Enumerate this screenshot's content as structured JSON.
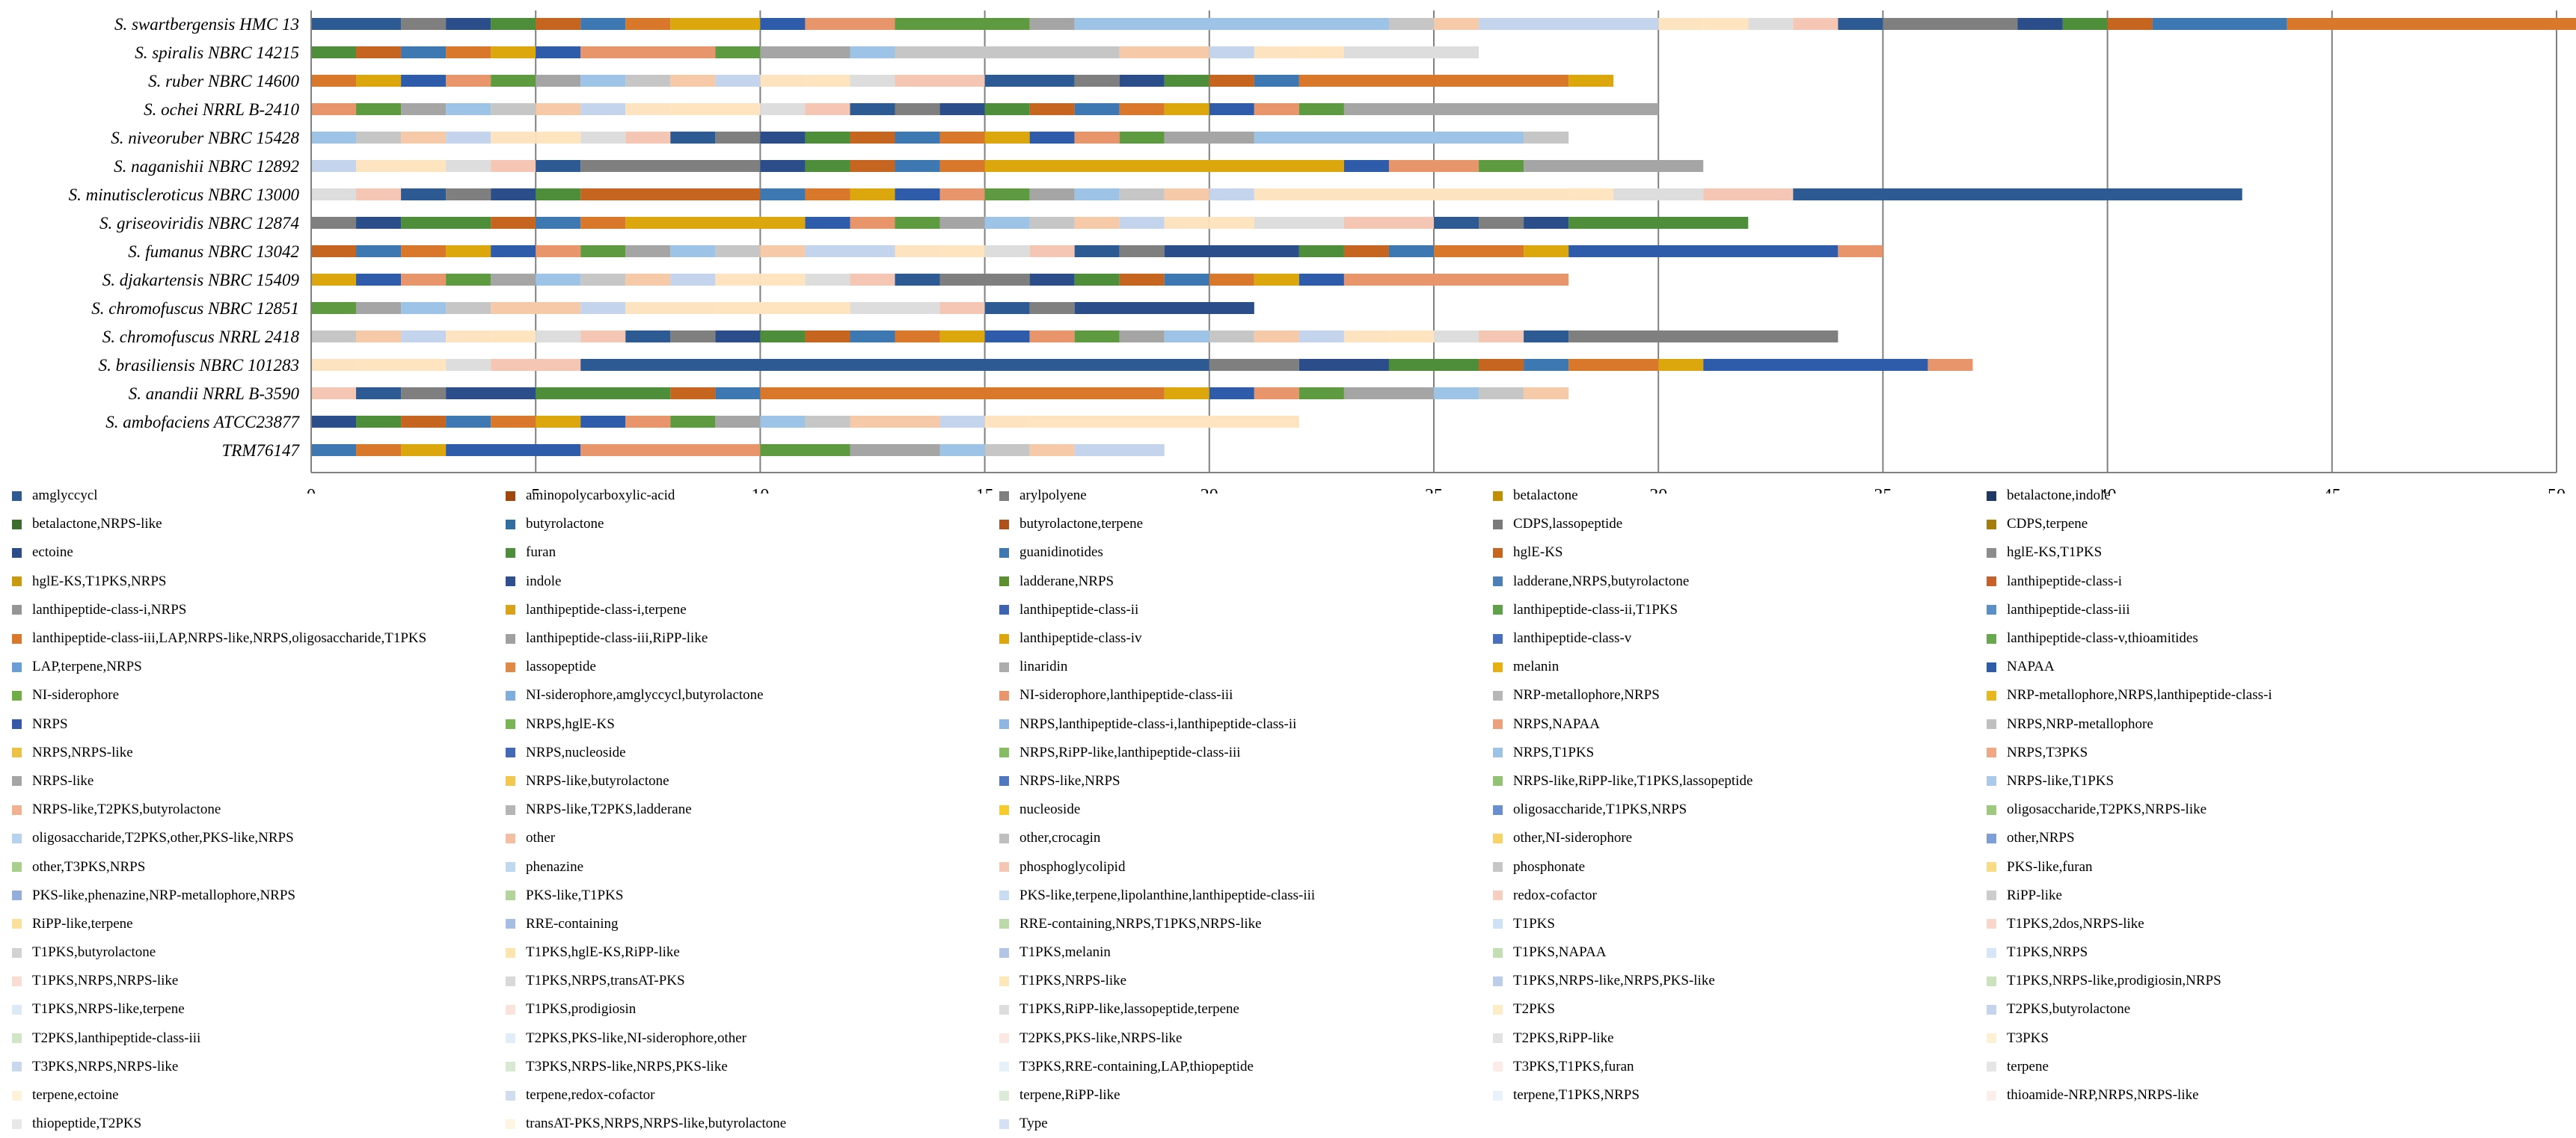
{
  "chart_data": {
    "type": "bar",
    "orientation": "horizontal",
    "stacked": true,
    "title": "",
    "xlabel": "",
    "ylabel": "",
    "xlim": [
      0,
      50
    ],
    "xticks": [
      0,
      5,
      10,
      15,
      20,
      25,
      30,
      35,
      40,
      45,
      50
    ],
    "grid": "vertical",
    "legend_position": "bottom",
    "categories": [
      "S. swartbergensis HMC 13",
      "S. spiralis NBRC 14215",
      "S. ruber NBRC 14600",
      "S. ochei NRRL B-2410",
      "S. niveoruber NBRC 15428",
      "S. naganishii NBRC 12892",
      "S. minutiscleroticus NBRC 13000",
      "S. griseoviridis NBRC 12874",
      "S. fumanus NBRC 13042",
      "S. djakartensis NBRC 15409",
      "S. chromofuscus NBRC 12851",
      "S. chromofuscus NRRL 2418",
      "S. brasiliensis NBRC 101283",
      "S. anandii NRRL B-3590",
      "S. ambofaciens ATCC23877",
      "TRM76147"
    ],
    "segment_colors": [
      "#2E5A93",
      "#7F7F7F",
      "#2B4D8A",
      "#4E8E3A",
      "#C5651F",
      "#3D78B3",
      "#D9782A",
      "#DBA70C",
      "#2F5CAA",
      "#E8956B",
      "#5E9A40",
      "#A5A5A5",
      "#9DC3E6",
      "#C6C6C6",
      "#F6C9A8",
      "#C4D4EC",
      "#FDE3C0",
      "#FFE4C0",
      "#DDDDDD",
      "#F5C6B4"
    ],
    "segment_values": [
      [
        2,
        1,
        1,
        1,
        1,
        1,
        1,
        2,
        1,
        2,
        3,
        1,
        7,
        1,
        1,
        4,
        1,
        1,
        1,
        1,
        1,
        3,
        1,
        1,
        1,
        3,
        7
      ],
      [
        1,
        1,
        1,
        1,
        1,
        1,
        3,
        1,
        2,
        1,
        5,
        2,
        1,
        1,
        1,
        3
      ],
      [
        1,
        1,
        1,
        1,
        1,
        1,
        1,
        1,
        1,
        1,
        1,
        1,
        1,
        2,
        2,
        1,
        1,
        1,
        1,
        1,
        6,
        1
      ],
      [
        1,
        1,
        1,
        1,
        1,
        1,
        1,
        1,
        2,
        1,
        1,
        1,
        1,
        1,
        1,
        1,
        1,
        1,
        1,
        1,
        1,
        1,
        7
      ],
      [
        1,
        1,
        1,
        1,
        1,
        1,
        1,
        1,
        1,
        1,
        1,
        1,
        1,
        1,
        1,
        1,
        1,
        1,
        1,
        2,
        6,
        1
      ],
      [
        1,
        1,
        1,
        1,
        1,
        1,
        4,
        1,
        1,
        1,
        1,
        1,
        8,
        1,
        2,
        1,
        4
      ],
      [
        1,
        1,
        1,
        1,
        1,
        1,
        4,
        1,
        1,
        1,
        1,
        1,
        1,
        1,
        1,
        1,
        1,
        1,
        7,
        1,
        2,
        2,
        10
      ],
      [
        1,
        1,
        2,
        1,
        1,
        1,
        4,
        1,
        1,
        1,
        1,
        1,
        1,
        1,
        1,
        1,
        1,
        2,
        2,
        1,
        1,
        1,
        4
      ],
      [
        1,
        1,
        1,
        1,
        1,
        1,
        1,
        1,
        1,
        1,
        1,
        2,
        1,
        1,
        1,
        1,
        1,
        1,
        3,
        1,
        1,
        1,
        2,
        1,
        6,
        1
      ],
      [
        1,
        1,
        1,
        1,
        1,
        1,
        1,
        1,
        1,
        1,
        1,
        1,
        1,
        1,
        2,
        1,
        1,
        1,
        1,
        1,
        1,
        1,
        5
      ],
      [
        1,
        1,
        1,
        1,
        2,
        1,
        2,
        3,
        2,
        1,
        1,
        1,
        4
      ],
      [
        1,
        1,
        1,
        1,
        1,
        1,
        1,
        1,
        1,
        1,
        1,
        1,
        1,
        1,
        1,
        1,
        1,
        1,
        1,
        1,
        1,
        1,
        1,
        1,
        1,
        1,
        1,
        1,
        6
      ],
      [
        1,
        2,
        1,
        2,
        14,
        2,
        2,
        2,
        1,
        1,
        2,
        1,
        5,
        1
      ],
      [
        1,
        1,
        1,
        2,
        3,
        1,
        1,
        9,
        1,
        1,
        1,
        1,
        2,
        1,
        1,
        1
      ],
      [
        1,
        1,
        1,
        1,
        1,
        1,
        1,
        1,
        1,
        1,
        1,
        1,
        2,
        1,
        1,
        6
      ],
      [
        1,
        1,
        1,
        3,
        4,
        2,
        2,
        1,
        1,
        1,
        2
      ]
    ],
    "legend": [
      "amglyccycl",
      "aminopolycarboxylic-acid",
      "arylpolyene",
      "betalactone",
      "betalactone,indole",
      "betalactone,NRPS-like",
      "butyrolactone",
      "butyrolactone,terpene",
      "CDPS,lassopeptide",
      "CDPS,terpene",
      "ectoine",
      "furan",
      "guanidinotides",
      "hglE-KS",
      "hglE-KS,T1PKS",
      "hglE-KS,T1PKS,NRPS",
      "indole",
      "ladderane,NRPS",
      "ladderane,NRPS,butyrolactone",
      "lanthipeptide-class-i",
      "lanthipeptide-class-i,NRPS",
      "lanthipeptide-class-i,terpene",
      "lanthipeptide-class-ii",
      "lanthipeptide-class-ii,T1PKS",
      "lanthipeptide-class-iii",
      "lanthipeptide-class-iii,LAP,NRPS-like,NRPS,oligosaccharide,T1PKS",
      "lanthipeptide-class-iii,RiPP-like",
      "lanthipeptide-class-iv",
      "lanthipeptide-class-v",
      "lanthipeptide-class-v,thioamitides",
      "LAP,terpene,NRPS",
      "lassopeptide",
      "linaridin",
      "melanin",
      "NAPAA",
      "NI-siderophore",
      "NI-siderophore,amglyccycl,butyrolactone",
      "NI-siderophore,lanthipeptide-class-iii",
      "NRP-metallophore,NRPS",
      "NRP-metallophore,NRPS,lanthipeptide-class-i",
      "NRPS",
      "NRPS,hglE-KS",
      "NRPS,lanthipeptide-class-i,lanthipeptide-class-ii",
      "NRPS,NAPAA",
      "NRPS,NRP-metallophore",
      "NRPS,NRPS-like",
      "NRPS,nucleoside",
      "NRPS,RiPP-like,lanthipeptide-class-iii",
      "NRPS,T1PKS",
      "NRPS,T3PKS",
      "NRPS-like",
      "NRPS-like,butyrolactone",
      "NRPS-like,NRPS",
      "NRPS-like,RiPP-like,T1PKS,lassopeptide",
      "NRPS-like,T1PKS",
      "NRPS-like,T2PKS,butyrolactone",
      "NRPS-like,T2PKS,ladderane",
      "nucleoside",
      "oligosaccharide,T1PKS,NRPS",
      "oligosaccharide,T2PKS,NRPS-like",
      "oligosaccharide,T2PKS,other,PKS-like,NRPS",
      "other",
      "other,crocagin",
      "other,NI-siderophore",
      "other,NRPS",
      "other,T3PKS,NRPS",
      "phenazine",
      "phosphoglycolipid",
      "phosphonate",
      "PKS-like,furan",
      "PKS-like,phenazine,NRP-metallophore,NRPS",
      "PKS-like,T1PKS",
      "PKS-like,terpene,lipolanthine,lanthipeptide-class-iii",
      "redox-cofactor",
      "RiPP-like",
      "RiPP-like,terpene",
      "RRE-containing",
      "RRE-containing,NRPS,T1PKS,NRPS-like",
      "T1PKS",
      "T1PKS,2dos,NRPS-like",
      "T1PKS,butyrolactone",
      "T1PKS,hglE-KS,RiPP-like",
      "T1PKS,melanin",
      "T1PKS,NAPAA",
      "T1PKS,NRPS",
      "T1PKS,NRPS,NRPS-like",
      "T1PKS,NRPS,transAT-PKS",
      "T1PKS,NRPS-like",
      "T1PKS,NRPS-like,NRPS,PKS-like",
      "T1PKS,NRPS-like,prodigiosin,NRPS",
      "T1PKS,NRPS-like,terpene",
      "T1PKS,prodigiosin",
      "T1PKS,RiPP-like,lassopeptide,terpene",
      "T2PKS",
      "T2PKS,butyrolactone",
      "T2PKS,lanthipeptide-class-iii",
      "T2PKS,PKS-like,NI-siderophore,other",
      "T2PKS,PKS-like,NRPS-like",
      "T2PKS,RiPP-like",
      "T3PKS",
      "T3PKS,NRPS,NRPS-like",
      "T3PKS,NRPS-like,NRPS,PKS-like",
      "T3PKS,RRE-containing,LAP,thiopeptide",
      "T3PKS,T1PKS,furan",
      "terpene",
      "terpene,ectoine",
      "terpene,redox-cofactor",
      "terpene,RiPP-like",
      "terpene,T1PKS,NRPS",
      "thioamide-NRP,NRPS,NRPS-like",
      "thiopeptide,T2PKS",
      "transAT-PKS,NRPS,NRPS-like,butyrolactone",
      "Type"
    ],
    "legend_colors": [
      "#2E5A93",
      "#9E480E",
      "#7F7F7F",
      "#BF8F00",
      "#203864",
      "#3B6E2A",
      "#2F6E9E",
      "#B0511C",
      "#7A7A7A",
      "#A67C0A",
      "#2B4D8A",
      "#4E8E3A",
      "#3D78B3",
      "#C5651F",
      "#8C8C8C",
      "#C9990E",
      "#2F4F8F",
      "#5B8F2F",
      "#4A7FB8",
      "#C7602A",
      "#959595",
      "#D9A319",
      "#3E64B0",
      "#5FA04A",
      "#5B8FC8",
      "#D9782A",
      "#A0A0A0",
      "#DBA70C",
      "#4A6FC0",
      "#6AA84F",
      "#6A9ED8",
      "#E08A45",
      "#ACACAC",
      "#E6B012",
      "#2F5CAA",
      "#70AD47",
      "#7FAEDD",
      "#E8956B",
      "#B7B7B7",
      "#E8B71E",
      "#3559A6",
      "#7AB553",
      "#8DB7E0",
      "#EDA07C",
      "#C0C0C0",
      "#EEC043",
      "#4368B6",
      "#86BC62",
      "#9DC3E6",
      "#F0A884",
      "#A5A5A5",
      "#F2C74E",
      "#5078C0",
      "#93C272",
      "#A9CAEA",
      "#F2B292",
      "#B5B5B5",
      "#F7CA2E",
      "#6B8ECE",
      "#9FC97E",
      "#B6D2EE",
      "#F4BEA2",
      "#BFBFBF",
      "#F8D36A",
      "#7F9DD6",
      "#A8CF8C",
      "#BFD8F0",
      "#F5C6B4",
      "#C6C6C6",
      "#F9DA85",
      "#93ADDD",
      "#B2D49B",
      "#C8DDF2",
      "#F7CFC0",
      "#CCCCCC",
      "#FBE09C",
      "#A5BCE3",
      "#BCDAA9",
      "#CFE1F4",
      "#F8D6CA",
      "#D2D2D2",
      "#FCE4AD",
      "#B2C5E7",
      "#C4DEB3",
      "#D6E6F6",
      "#F9DDD3",
      "#D8D8D8",
      "#FDE8BC",
      "#BCCDEA",
      "#CBE2BD",
      "#DCE9F7",
      "#FAE3DB",
      "#DDDDDD",
      "#FEECC8",
      "#C4D4EC",
      "#D1E6C7",
      "#E1EDF8",
      "#FBE8E2",
      "#E2E2E2",
      "#FEF0D3",
      "#CAD8EE",
      "#D7E9D0",
      "#E6F0F9",
      "#FCECE7",
      "#E5E5E5",
      "#FFF2DB",
      "#D0DCF0",
      "#DCEBD7",
      "#E9F2FA",
      "#FCEFEA",
      "#E8E8E8",
      "#FFF4E2",
      "#D4E0F4"
    ]
  }
}
